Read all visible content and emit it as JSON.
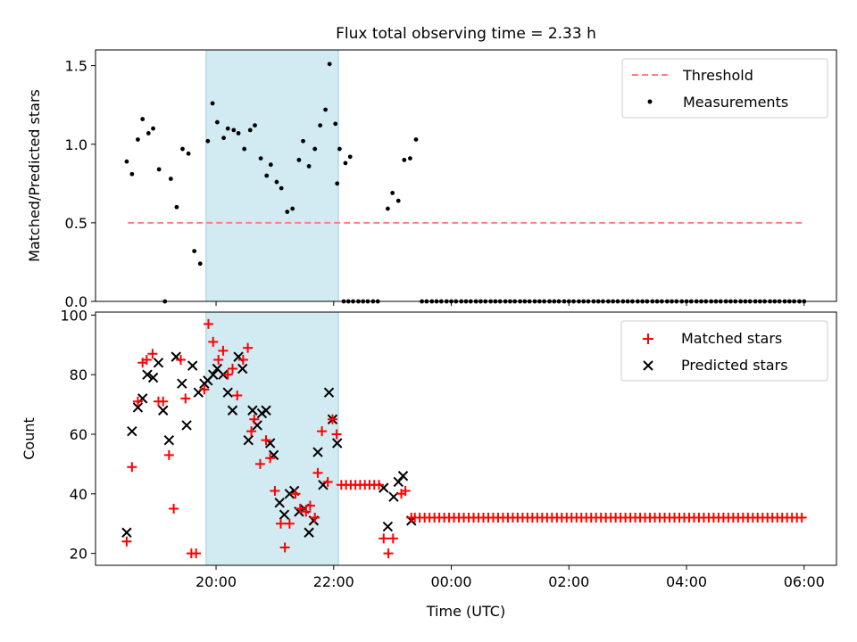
{
  "figure": {
    "title": "Flux total observing time = 2.33 h"
  },
  "chart_data": [
    {
      "type": "scatter",
      "ylabel": "Matched/Predicted stars",
      "ylim": [
        0,
        1.6
      ],
      "yticks": [
        0.0,
        0.5,
        1.0,
        1.5
      ],
      "ytick_labels": [
        "0.0",
        "0.5",
        "1.0",
        "1.5"
      ],
      "legend_position": "top-right",
      "shaded_span": {
        "start": 19.83,
        "end": 22.08,
        "color": "#add8e6"
      },
      "threshold": {
        "name": "Threshold",
        "value": 0.5,
        "x_range": [
          18.5,
          30.0
        ],
        "color": "#ff7f7f"
      },
      "series": [
        {
          "name": "Measurements",
          "color": "#000000",
          "points": [
            [
              18.48,
              0.89
            ],
            [
              18.57,
              0.81
            ],
            [
              18.67,
              1.03
            ],
            [
              18.75,
              1.16
            ],
            [
              18.85,
              1.07
            ],
            [
              18.93,
              1.1
            ],
            [
              19.03,
              0.84
            ],
            [
              19.13,
              0.0
            ],
            [
              19.23,
              0.78
            ],
            [
              19.33,
              0.6
            ],
            [
              19.43,
              0.97
            ],
            [
              19.53,
              0.94
            ],
            [
              19.63,
              0.32
            ],
            [
              19.73,
              0.24
            ],
            [
              19.86,
              1.02
            ],
            [
              19.94,
              1.26
            ],
            [
              20.02,
              1.14
            ],
            [
              20.13,
              1.04
            ],
            [
              20.2,
              1.1
            ],
            [
              20.3,
              1.09
            ],
            [
              20.38,
              1.07
            ],
            [
              20.48,
              0.97
            ],
            [
              20.58,
              1.09
            ],
            [
              20.66,
              1.12
            ],
            [
              20.76,
              0.91
            ],
            [
              20.86,
              0.8
            ],
            [
              20.93,
              0.87
            ],
            [
              21.03,
              0.76
            ],
            [
              21.11,
              0.72
            ],
            [
              21.21,
              0.57
            ],
            [
              21.3,
              0.59
            ],
            [
              21.41,
              0.9
            ],
            [
              21.48,
              1.02
            ],
            [
              21.58,
              0.86
            ],
            [
              21.68,
              0.97
            ],
            [
              21.77,
              1.12
            ],
            [
              21.86,
              1.22
            ],
            [
              21.93,
              1.51
            ],
            [
              22.03,
              1.13
            ],
            [
              22.1,
              0.97
            ],
            [
              22.2,
              0.88
            ],
            [
              22.28,
              0.92
            ],
            [
              22.06,
              0.75
            ],
            [
              22.17,
              0.0
            ],
            [
              22.25,
              0.0
            ],
            [
              22.33,
              0.0
            ],
            [
              22.42,
              0.0
            ],
            [
              22.5,
              0.0
            ],
            [
              22.58,
              0.0
            ],
            [
              22.67,
              0.0
            ],
            [
              22.75,
              0.0
            ],
            [
              22.92,
              0.59
            ],
            [
              23.0,
              0.69
            ],
            [
              23.1,
              0.64
            ],
            [
              23.2,
              0.9
            ],
            [
              23.3,
              0.91
            ],
            [
              23.4,
              1.03
            ],
            [
              23.5,
              0.0
            ],
            [
              23.58,
              0.0
            ],
            [
              23.67,
              0.0
            ],
            [
              23.75,
              0.0
            ],
            [
              23.83,
              0.0
            ],
            [
              23.92,
              0.0
            ],
            [
              24.0,
              0.0
            ],
            [
              24.08,
              0.0
            ],
            [
              24.17,
              0.0
            ],
            [
              24.25,
              0.0
            ],
            [
              24.33,
              0.0
            ],
            [
              24.42,
              0.0
            ],
            [
              24.5,
              0.0
            ],
            [
              24.58,
              0.0
            ],
            [
              24.67,
              0.0
            ],
            [
              24.75,
              0.0
            ],
            [
              24.83,
              0.0
            ],
            [
              24.92,
              0.0
            ],
            [
              25.0,
              0.0
            ],
            [
              25.08,
              0.0
            ],
            [
              25.17,
              0.0
            ],
            [
              25.25,
              0.0
            ],
            [
              25.33,
              0.0
            ],
            [
              25.42,
              0.0
            ],
            [
              25.5,
              0.0
            ],
            [
              25.58,
              0.0
            ],
            [
              25.67,
              0.0
            ],
            [
              25.75,
              0.0
            ],
            [
              25.83,
              0.0
            ],
            [
              25.92,
              0.0
            ],
            [
              26.0,
              0.0
            ],
            [
              26.08,
              0.0
            ],
            [
              26.17,
              0.0
            ],
            [
              26.25,
              0.0
            ],
            [
              26.33,
              0.0
            ],
            [
              26.42,
              0.0
            ],
            [
              26.5,
              0.0
            ],
            [
              26.58,
              0.0
            ],
            [
              26.67,
              0.0
            ],
            [
              26.75,
              0.0
            ],
            [
              26.83,
              0.0
            ],
            [
              26.92,
              0.0
            ],
            [
              27.0,
              0.0
            ],
            [
              27.08,
              0.0
            ],
            [
              27.17,
              0.0
            ],
            [
              27.25,
              0.0
            ],
            [
              27.33,
              0.0
            ],
            [
              27.42,
              0.0
            ],
            [
              27.5,
              0.0
            ],
            [
              27.58,
              0.0
            ],
            [
              27.67,
              0.0
            ],
            [
              27.75,
              0.0
            ],
            [
              27.83,
              0.0
            ],
            [
              27.92,
              0.0
            ],
            [
              28.0,
              0.0
            ],
            [
              28.08,
              0.0
            ],
            [
              28.17,
              0.0
            ],
            [
              28.25,
              0.0
            ],
            [
              28.33,
              0.0
            ],
            [
              28.42,
              0.0
            ],
            [
              28.5,
              0.0
            ],
            [
              28.58,
              0.0
            ],
            [
              28.67,
              0.0
            ],
            [
              28.75,
              0.0
            ],
            [
              28.83,
              0.0
            ],
            [
              28.92,
              0.0
            ],
            [
              29.0,
              0.0
            ],
            [
              29.08,
              0.0
            ],
            [
              29.17,
              0.0
            ],
            [
              29.25,
              0.0
            ],
            [
              29.33,
              0.0
            ],
            [
              29.42,
              0.0
            ],
            [
              29.5,
              0.0
            ],
            [
              29.58,
              0.0
            ],
            [
              29.67,
              0.0
            ],
            [
              29.75,
              0.0
            ],
            [
              29.83,
              0.0
            ],
            [
              29.92,
              0.0
            ],
            [
              30.0,
              0.0
            ]
          ]
        }
      ]
    },
    {
      "type": "scatter",
      "xlabel": "Time (UTC)",
      "ylabel": "Count",
      "ylim": [
        16,
        101
      ],
      "xlim": [
        17.95,
        30.55
      ],
      "yticks": [
        20,
        40,
        60,
        80,
        100
      ],
      "ytick_labels": [
        "20",
        "40",
        "60",
        "80",
        "100"
      ],
      "xticks": [
        20,
        22,
        24,
        26,
        28,
        30
      ],
      "xtick_labels": [
        "20:00",
        "22:00",
        "00:00",
        "02:00",
        "04:00",
        "06:00"
      ],
      "legend_position": "top-right",
      "shaded_span": {
        "start": 19.83,
        "end": 22.08,
        "color": "#add8e6"
      },
      "series": [
        {
          "name": "Matched stars",
          "marker": "plus",
          "color": "#ff0000",
          "points": [
            [
              18.48,
              24
            ],
            [
              18.57,
              49
            ],
            [
              18.67,
              71
            ],
            [
              18.75,
              84
            ],
            [
              18.82,
              85
            ],
            [
              18.92,
              87
            ],
            [
              19.02,
              71
            ],
            [
              19.1,
              71
            ],
            [
              19.2,
              53
            ],
            [
              19.28,
              35
            ],
            [
              19.4,
              85
            ],
            [
              19.48,
              72
            ],
            [
              19.58,
              20
            ],
            [
              19.66,
              20
            ],
            [
              19.8,
              75
            ],
            [
              19.87,
              97
            ],
            [
              19.95,
              91
            ],
            [
              20.04,
              85
            ],
            [
              20.12,
              88
            ],
            [
              20.2,
              80
            ],
            [
              20.28,
              82
            ],
            [
              20.36,
              73
            ],
            [
              20.46,
              85
            ],
            [
              20.54,
              89
            ],
            [
              20.6,
              61
            ],
            [
              20.65,
              65
            ],
            [
              20.75,
              50
            ],
            [
              20.85,
              58
            ],
            [
              20.92,
              52
            ],
            [
              21.0,
              41
            ],
            [
              21.1,
              30
            ],
            [
              21.17,
              22
            ],
            [
              21.25,
              30
            ],
            [
              21.35,
              40
            ],
            [
              21.43,
              35
            ],
            [
              21.53,
              34
            ],
            [
              21.6,
              36
            ],
            [
              21.68,
              32
            ],
            [
              21.73,
              47
            ],
            [
              21.8,
              61
            ],
            [
              21.9,
              44
            ],
            [
              21.98,
              65
            ],
            [
              22.05,
              60
            ],
            [
              22.13,
              43
            ],
            [
              22.21,
              43
            ],
            [
              22.29,
              43
            ],
            [
              22.37,
              43
            ],
            [
              22.45,
              43
            ],
            [
              22.53,
              43
            ],
            [
              22.61,
              43
            ],
            [
              22.69,
              43
            ],
            [
              22.77,
              43
            ],
            [
              22.85,
              25
            ],
            [
              22.93,
              20
            ],
            [
              23.01,
              25
            ],
            [
              23.15,
              40
            ],
            [
              23.22,
              41
            ],
            [
              23.32,
              32
            ]
          ],
          "repeated_run": {
            "x_start": 23.38,
            "x_end": 30.0,
            "step": 0.0833,
            "value": 32
          }
        },
        {
          "name": "Predicted stars",
          "marker": "x",
          "color": "#000000",
          "points": [
            [
              18.48,
              27
            ],
            [
              18.57,
              61
            ],
            [
              18.67,
              69
            ],
            [
              18.75,
              72
            ],
            [
              18.83,
              80
            ],
            [
              18.93,
              79
            ],
            [
              19.02,
              84
            ],
            [
              19.1,
              68
            ],
            [
              19.2,
              58
            ],
            [
              19.32,
              86
            ],
            [
              19.42,
              77
            ],
            [
              19.5,
              63
            ],
            [
              19.6,
              83
            ],
            [
              19.7,
              74
            ],
            [
              19.8,
              77
            ],
            [
              19.86,
              78
            ],
            [
              19.95,
              80
            ],
            [
              20.02,
              82
            ],
            [
              20.12,
              80
            ],
            [
              20.2,
              74
            ],
            [
              20.28,
              68
            ],
            [
              20.38,
              86
            ],
            [
              20.45,
              82
            ],
            [
              20.55,
              58
            ],
            [
              20.62,
              68
            ],
            [
              20.7,
              63
            ],
            [
              20.78,
              67
            ],
            [
              20.85,
              68
            ],
            [
              20.92,
              57
            ],
            [
              20.98,
              53
            ],
            [
              21.08,
              37
            ],
            [
              21.16,
              33
            ],
            [
              21.25,
              40
            ],
            [
              21.33,
              41
            ],
            [
              21.41,
              34
            ],
            [
              21.5,
              35
            ],
            [
              21.58,
              27
            ],
            [
              21.66,
              31
            ],
            [
              21.73,
              54
            ],
            [
              21.82,
              43
            ],
            [
              21.92,
              74
            ],
            [
              21.98,
              65
            ],
            [
              22.06,
              57
            ],
            [
              22.85,
              42
            ],
            [
              22.92,
              29
            ],
            [
              23.02,
              39
            ],
            [
              23.1,
              44
            ],
            [
              23.18,
              46
            ],
            [
              23.32,
              31
            ]
          ]
        }
      ]
    }
  ]
}
